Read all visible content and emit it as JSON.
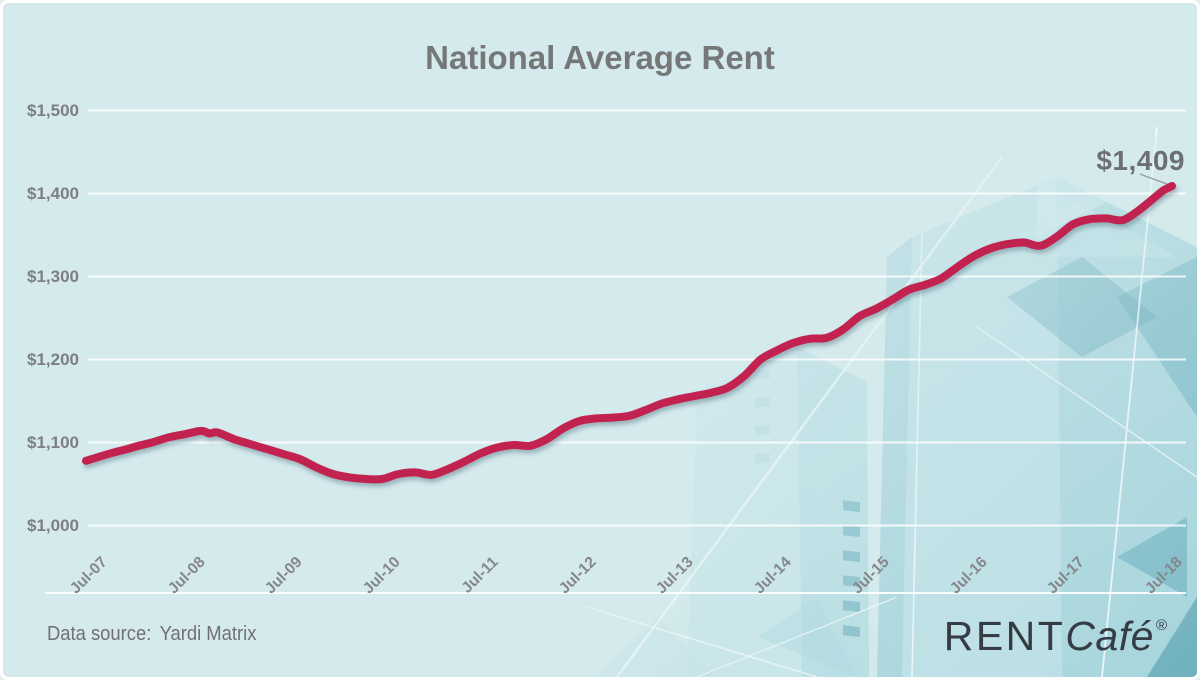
{
  "page": {
    "title": "National Average Rent"
  },
  "footer": {
    "source_label": "Data source:",
    "source_name": "Yardi Matrix"
  },
  "brand": {
    "rent": "RENT",
    "cafe": "Café",
    "reg": "®"
  },
  "colors": {
    "background": "#d5eaed",
    "line": "#c2214f",
    "gridline": "rgba(255,255,255,0.82)",
    "text_gray": "#767779",
    "collage_teal": "#7fc1cc"
  },
  "chart_data": {
    "type": "line",
    "title": "National Average Rent",
    "xlabel": "",
    "ylabel": "",
    "x_unit": "months since Jul-2007 (monthly series, Jul-07 to Jul-18)",
    "xticks": [
      "Jul-07",
      "Jul-08",
      "Jul-09",
      "Jul-10",
      "Jul-11",
      "Jul-12",
      "Jul-13",
      "Jul-14",
      "Jul-15",
      "Jul-16",
      "Jul-17",
      "Jul-18"
    ],
    "yticks": [
      {
        "label": "$1,000",
        "value": 1000
      },
      {
        "label": "$1,100",
        "value": 1100
      },
      {
        "label": "$1,200",
        "value": 1200
      },
      {
        "label": "$1,300",
        "value": 1300
      },
      {
        "label": "$1,400",
        "value": 1400
      },
      {
        "label": "$1,500",
        "value": 1500
      }
    ],
    "ylim": [
      1000,
      1500
    ],
    "grid": true,
    "legend": false,
    "line_color": "#c2214f",
    "annotation": {
      "label": "$1,409",
      "value": 1409,
      "at": "Jul-18"
    },
    "series": [
      {
        "name": "National Average Rent ($)",
        "points": [
          [
            0,
            1078
          ],
          [
            1,
            1081
          ],
          [
            3,
            1087
          ],
          [
            5,
            1092
          ],
          [
            6,
            1095
          ],
          [
            8,
            1100
          ],
          [
            10,
            1106
          ],
          [
            12,
            1110
          ],
          [
            14,
            1114
          ],
          [
            15,
            1111
          ],
          [
            16,
            1112
          ],
          [
            18,
            1104
          ],
          [
            20,
            1098
          ],
          [
            22,
            1092
          ],
          [
            24,
            1086
          ],
          [
            26,
            1080
          ],
          [
            28,
            1070
          ],
          [
            30,
            1062
          ],
          [
            32,
            1058
          ],
          [
            34,
            1056
          ],
          [
            36,
            1056
          ],
          [
            38,
            1062
          ],
          [
            40,
            1064
          ],
          [
            42,
            1061
          ],
          [
            44,
            1068
          ],
          [
            46,
            1077
          ],
          [
            48,
            1087
          ],
          [
            50,
            1094
          ],
          [
            52,
            1097
          ],
          [
            54,
            1096
          ],
          [
            56,
            1104
          ],
          [
            58,
            1117
          ],
          [
            60,
            1126
          ],
          [
            62,
            1129
          ],
          [
            64,
            1130
          ],
          [
            66,
            1132
          ],
          [
            68,
            1139
          ],
          [
            70,
            1147
          ],
          [
            72,
            1152
          ],
          [
            74,
            1156
          ],
          [
            76,
            1160
          ],
          [
            78,
            1166
          ],
          [
            80,
            1180
          ],
          [
            82,
            1200
          ],
          [
            84,
            1211
          ],
          [
            86,
            1220
          ],
          [
            88,
            1225
          ],
          [
            90,
            1226
          ],
          [
            92,
            1236
          ],
          [
            94,
            1252
          ],
          [
            96,
            1261
          ],
          [
            98,
            1272
          ],
          [
            100,
            1284
          ],
          [
            102,
            1290
          ],
          [
            104,
            1298
          ],
          [
            106,
            1312
          ],
          [
            108,
            1325
          ],
          [
            110,
            1334
          ],
          [
            112,
            1339
          ],
          [
            114,
            1341
          ],
          [
            116,
            1337
          ],
          [
            118,
            1348
          ],
          [
            120,
            1363
          ],
          [
            122,
            1369
          ],
          [
            124,
            1370
          ],
          [
            126,
            1368
          ],
          [
            128,
            1380
          ],
          [
            130,
            1396
          ],
          [
            131,
            1404
          ],
          [
            132,
            1409
          ]
        ]
      }
    ]
  }
}
